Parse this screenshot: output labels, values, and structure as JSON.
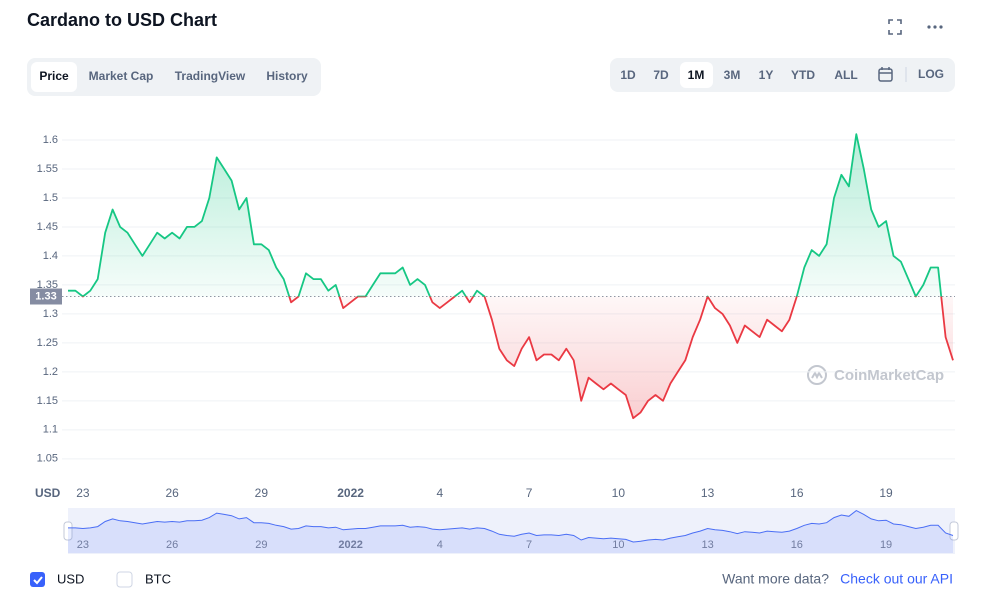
{
  "chart_data": {
    "type": "line",
    "title": "Cardano to USD Chart",
    "y_axis_label": "USD",
    "categories": [
      null,
      null,
      "23",
      null,
      null,
      null,
      null,
      null,
      null,
      null,
      null,
      null,
      null,
      null,
      "26",
      null,
      null,
      null,
      null,
      null,
      null,
      null,
      null,
      null,
      null,
      null,
      "29",
      null,
      null,
      null,
      null,
      null,
      null,
      null,
      null,
      null,
      null,
      null,
      "2022",
      null,
      null,
      null,
      null,
      null,
      null,
      null,
      null,
      null,
      null,
      null,
      "4",
      null,
      null,
      null,
      null,
      null,
      null,
      null,
      null,
      null,
      null,
      null,
      "7",
      null,
      null,
      null,
      null,
      null,
      null,
      null,
      null,
      null,
      null,
      null,
      "10",
      null,
      null,
      null,
      null,
      null,
      null,
      null,
      null,
      null,
      null,
      null,
      "13",
      null,
      null,
      null,
      null,
      null,
      null,
      null,
      null,
      null,
      null,
      null,
      "16",
      null,
      null,
      null,
      null,
      null,
      null,
      null,
      null,
      null,
      null,
      null,
      "19",
      null,
      null,
      null,
      null,
      null,
      null,
      null,
      null,
      null
    ],
    "series": [
      {
        "name": "USD",
        "color": "#16c784",
        "values": [
          1.34,
          1.34,
          1.33,
          1.34,
          1.36,
          1.44,
          1.48,
          1.45,
          1.44,
          1.42,
          1.4,
          1.42,
          1.44,
          1.43,
          1.44,
          1.43,
          1.45,
          1.45,
          1.46,
          1.5,
          1.57,
          1.55,
          1.53,
          1.48,
          1.5,
          1.42,
          1.42,
          1.41,
          1.38,
          1.36,
          1.32,
          1.33,
          1.37,
          1.36,
          1.36,
          1.34,
          1.35,
          1.31,
          1.32,
          1.33,
          1.33,
          1.35,
          1.37,
          1.37,
          1.37,
          1.38,
          1.35,
          1.36,
          1.35,
          1.32,
          1.31,
          1.32,
          1.33,
          1.34,
          1.32,
          1.34,
          1.33,
          1.29,
          1.24,
          1.22,
          1.21,
          1.24,
          1.26,
          1.22,
          1.23,
          1.23,
          1.22,
          1.24,
          1.22,
          1.15,
          1.19,
          1.18,
          1.17,
          1.18,
          1.17,
          1.16,
          1.12,
          1.13,
          1.15,
          1.16,
          1.15,
          1.18,
          1.2,
          1.22,
          1.26,
          1.29,
          1.33,
          1.31,
          1.3,
          1.28,
          1.25,
          1.28,
          1.27,
          1.26,
          1.29,
          1.28,
          1.27,
          1.29,
          1.33,
          1.38,
          1.41,
          1.4,
          1.42,
          1.5,
          1.54,
          1.52,
          1.61,
          1.55,
          1.48,
          1.45,
          1.46,
          1.4,
          1.39,
          1.36,
          1.33,
          1.35,
          1.38,
          1.38,
          1.26,
          1.22
        ]
      }
    ],
    "down_color": "#ea3943",
    "baseline": 1.33,
    "ylim": [
      1.01,
      1.65
    ],
    "yticks": [
      1.05,
      1.1,
      1.15,
      1.2,
      1.25,
      1.3,
      1.35,
      1.4,
      1.45,
      1.5,
      1.55,
      1.6
    ],
    "grid": true
  },
  "tabs": [
    "Price",
    "Market Cap",
    "TradingView",
    "History"
  ],
  "ranges": [
    "1D",
    "7D",
    "1M",
    "3M",
    "1Y",
    "YTD",
    "ALL"
  ],
  "log_button": "LOG",
  "watermark": "CoinMarketCap",
  "other_currency": "BTC",
  "footer": {
    "prompt": "Want more data?",
    "link": "Check out our API"
  }
}
